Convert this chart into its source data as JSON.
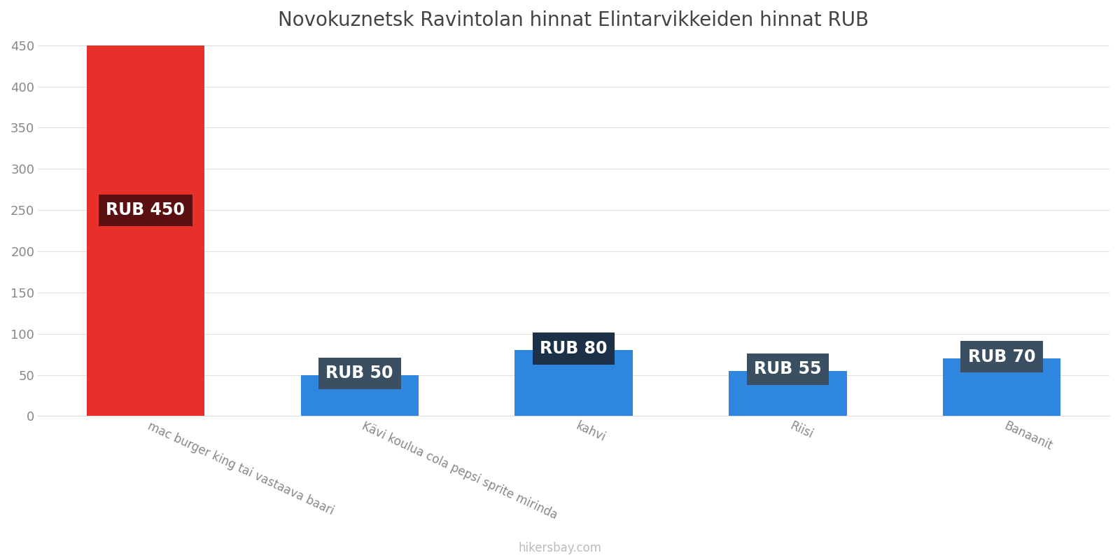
{
  "title": "Novokuznetsk Ravintolan hinnat Elintarvikkeiden hinnat RUB",
  "categories": [
    "mac burger king tai vastaava baari",
    "Kävi koulua cola pepsi sprite mirinda",
    "kahvi",
    "Riisi",
    "Banaanit"
  ],
  "values": [
    450,
    50,
    80,
    55,
    70
  ],
  "bar_colors": [
    "#e8302a",
    "#2e86de",
    "#2e86de",
    "#2e86de",
    "#2e86de"
  ],
  "label_texts": [
    "RUB 450",
    "RUB 50",
    "RUB 80",
    "RUB 55",
    "RUB 70"
  ],
  "label_bg_colors": [
    "#5a1010",
    "#3a4f62",
    "#1c3148",
    "#3a4f62",
    "#3a4f62"
  ],
  "ylim": [
    0,
    450
  ],
  "yticks": [
    0,
    50,
    100,
    150,
    200,
    250,
    300,
    350,
    400,
    450
  ],
  "background_color": "#ffffff",
  "grid_color": "#e0e0e0",
  "title_fontsize": 20,
  "tick_fontsize": 13,
  "label_fontsize": 17,
  "xlabel_fontsize": 12,
  "watermark": "hikersbay.com",
  "bar_width": 0.55
}
